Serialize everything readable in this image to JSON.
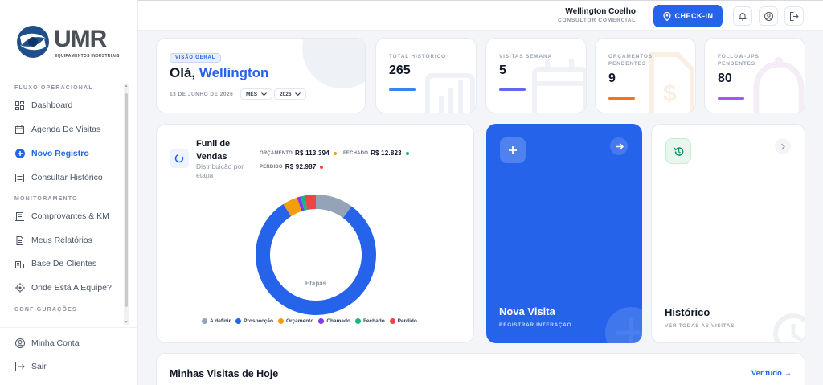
{
  "brand": {
    "name": "UMR",
    "subtitle": "EQUIPAMENTOS INDUSTRIAIS",
    "accent": "#2563eb"
  },
  "sidebar": {
    "sections": [
      {
        "label": "FLUXO OPERACIONAL"
      },
      {
        "label": "MONITORAMENTO"
      },
      {
        "label": "CONFIGURAÇÕES"
      }
    ],
    "items": [
      {
        "label": "Dashboard",
        "icon": "dashboard-icon"
      },
      {
        "label": "Agenda De Visitas",
        "icon": "calendar-icon"
      },
      {
        "label": "Novo Registro",
        "icon": "plus-circle-icon",
        "active": true
      },
      {
        "label": "Consultar Histórico",
        "icon": "list-icon"
      },
      {
        "label": "Comprovantes & KM",
        "icon": "receipt-icon"
      },
      {
        "label": "Meus Relatórios",
        "icon": "document-icon"
      },
      {
        "label": "Base De Clientes",
        "icon": "building-icon"
      },
      {
        "label": "Onde Está A Equipe?",
        "icon": "location-icon"
      }
    ],
    "footer": [
      {
        "label": "Minha Conta",
        "icon": "user-icon"
      },
      {
        "label": "Sair",
        "icon": "logout-icon"
      }
    ]
  },
  "header": {
    "user_name": "Wellington Coelho",
    "user_role": "CONSULTOR COMERCIAL",
    "checkin_label": "CHECK-IN"
  },
  "greeting": {
    "badge": "VISÃO GERAL",
    "hello": "Olá,",
    "name": "Wellington",
    "date": "13 DE JUNHO DE 2026",
    "period_select": "MÊS",
    "year_select": "2026"
  },
  "stats": [
    {
      "label": "TOTAL HISTÓRICO",
      "value": "265",
      "color": "#3b82f6"
    },
    {
      "label": "VISITAS SEMANA",
      "value": "5",
      "color": "#6366f1"
    },
    {
      "label": "ORÇAMENTOS PENDENTES",
      "value": "9",
      "color": "#f97316"
    },
    {
      "label": "FOLLOW-UPS PENDENTES",
      "value": "80",
      "color": "#a855f7"
    }
  ],
  "funnel": {
    "title_line1": "Funil de",
    "title_line2": "Vendas",
    "subtitle_line1": "Distribuição por",
    "subtitle_line2": "etapa",
    "orcamento_label": "ORÇAMENTO",
    "orcamento_value": "R$ 113.394",
    "fechado_label": "FECHADO",
    "fechado_value": "R$ 12.823",
    "perdido_label": "PERDIDO",
    "perdido_value": "R$ 92.987",
    "center_label": "Etapas"
  },
  "chart_data": {
    "type": "pie",
    "variant": "donut",
    "title": "Funil de Vendas",
    "center_label": "Etapas",
    "categories": [
      "A definir",
      "Prospecção",
      "Orçamento",
      "Chamado",
      "Fechado",
      "Perdido"
    ],
    "values": [
      10,
      80,
      4,
      1,
      1,
      3
    ],
    "colors": [
      "#94a3b8",
      "#2563eb",
      "#f59e0b",
      "#7c3aed",
      "#10b981",
      "#ef4444"
    ],
    "legend_position": "bottom"
  },
  "actions": {
    "new_visit_title": "Nova Visita",
    "new_visit_sub": "REGISTRAR INTERAÇÃO",
    "history_title": "Histórico",
    "history_sub": "VER TODAS AS VISITAS"
  },
  "visits": {
    "title": "Minhas Visitas de Hoje",
    "link": "Ver tudo"
  }
}
